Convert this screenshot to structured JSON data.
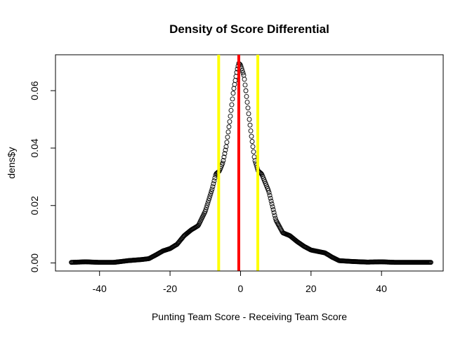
{
  "chart_data": {
    "type": "scatter",
    "title": "Density of Score Differential",
    "xlabel": "Punting Team Score - Receiving Team Score",
    "ylabel": "dens$y",
    "xlim": [
      -52.5,
      57.5
    ],
    "ylim": [
      -0.0028,
      0.0725
    ],
    "x_ticks": [
      -40,
      -20,
      0,
      20,
      40
    ],
    "y_ticks": [
      0.0,
      0.02,
      0.04,
      0.06
    ],
    "x_tick_labels": [
      "-40",
      "-20",
      "0",
      "20",
      "40"
    ],
    "y_tick_labels": [
      "0.00",
      "0.02",
      "0.04",
      "0.06"
    ],
    "grid": false,
    "marker": "open-circle",
    "series": [
      {
        "x_range": [
          -48,
          54
        ],
        "point_count": 512,
        "profile": [
          [
            -48,
            0.0002
          ],
          [
            -44,
            0.0004
          ],
          [
            -42,
            0.0003
          ],
          [
            -40,
            0.0002
          ],
          [
            -36,
            0.0002
          ],
          [
            -32,
            0.0008
          ],
          [
            -28,
            0.0012
          ],
          [
            -26,
            0.0015
          ],
          [
            -24,
            0.0028
          ],
          [
            -22,
            0.0042
          ],
          [
            -20,
            0.005
          ],
          [
            -18,
            0.0065
          ],
          [
            -16,
            0.0095
          ],
          [
            -14,
            0.0115
          ],
          [
            -12,
            0.013
          ],
          [
            -10,
            0.018
          ],
          [
            -8,
            0.026
          ],
          [
            -7,
            0.031
          ],
          [
            -6,
            0.032
          ],
          [
            -5,
            0.035
          ],
          [
            -4,
            0.041
          ],
          [
            -3,
            0.05
          ],
          [
            -2,
            0.06
          ],
          [
            -1,
            0.067
          ],
          [
            -0.5,
            0.0695
          ],
          [
            0,
            0.069
          ],
          [
            1,
            0.065
          ],
          [
            2,
            0.055
          ],
          [
            3,
            0.045
          ],
          [
            4,
            0.036
          ],
          [
            5,
            0.032
          ],
          [
            6,
            0.031
          ],
          [
            8,
            0.025
          ],
          [
            10,
            0.015
          ],
          [
            12,
            0.0105
          ],
          [
            14,
            0.0095
          ],
          [
            16,
            0.0075
          ],
          [
            18,
            0.0058
          ],
          [
            20,
            0.0045
          ],
          [
            22,
            0.004
          ],
          [
            24,
            0.0035
          ],
          [
            26,
            0.002
          ],
          [
            28,
            0.0008
          ],
          [
            32,
            0.0005
          ],
          [
            36,
            0.0003
          ],
          [
            40,
            0.0004
          ],
          [
            44,
            0.0002
          ],
          [
            48,
            0.0002
          ],
          [
            54,
            0.0002
          ]
        ]
      }
    ],
    "vertical_lines": [
      {
        "x": -0.5,
        "color": "#ff0000"
      },
      {
        "x": -6.2,
        "color": "#ffff00"
      },
      {
        "x": 4.9,
        "color": "#ffff00"
      }
    ]
  }
}
